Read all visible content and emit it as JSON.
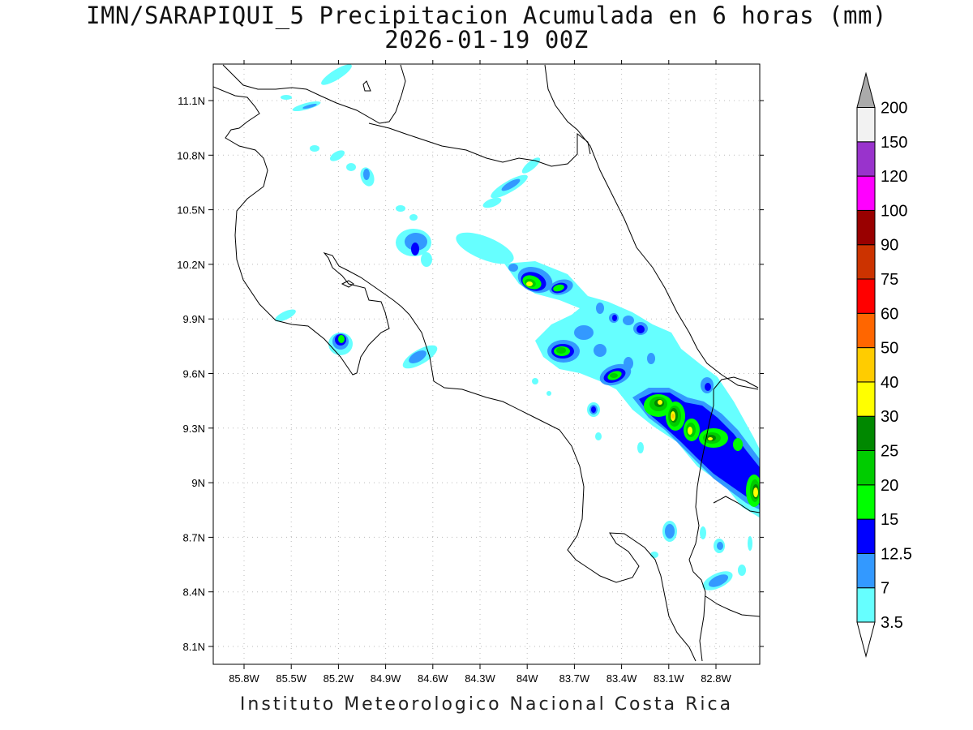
{
  "title_line1": "IMN/SARAPIQUI_5 Precipitacion Acumulada en 6 horas (mm)",
  "title_line2": "2026-01-19 00Z",
  "footer": "Instituto Meteorologico Nacional Costa Rica",
  "map": {
    "lon_range": [
      -86.0,
      -82.6
    ],
    "lat_range": [
      8.0,
      11.3
    ],
    "x_ticks": [
      "85.8W",
      "85.5W",
      "85.2W",
      "84.9W",
      "84.6W",
      "84.3W",
      "84W",
      "83.7W",
      "83.4W",
      "83.1W",
      "82.8W"
    ],
    "y_ticks": [
      "11.1N",
      "10.8N",
      "10.5N",
      "10.2N",
      "9.9N",
      "9.6N",
      "9.3N",
      "9N",
      "8.7N",
      "8.4N",
      "8.1N"
    ],
    "grid": "dotted"
  },
  "colorbar": {
    "levels": [
      "3.5",
      "7",
      "12.5",
      "15",
      "20",
      "25",
      "30",
      "40",
      "50",
      "60",
      "75",
      "90",
      "100",
      "120",
      "150",
      "200"
    ],
    "colors": [
      "#66ffff",
      "#3399ff",
      "#0000ff",
      "#00ff00",
      "#00cc00",
      "#008800",
      "#ffff00",
      "#ffcc00",
      "#ff6600",
      "#ff0000",
      "#cc3300",
      "#990000",
      "#ff00ff",
      "#9933cc",
      "#f2f2f2",
      "#aaaaaa"
    ],
    "under_color": "#ffffff",
    "over_color": "#aaaaaa"
  }
}
